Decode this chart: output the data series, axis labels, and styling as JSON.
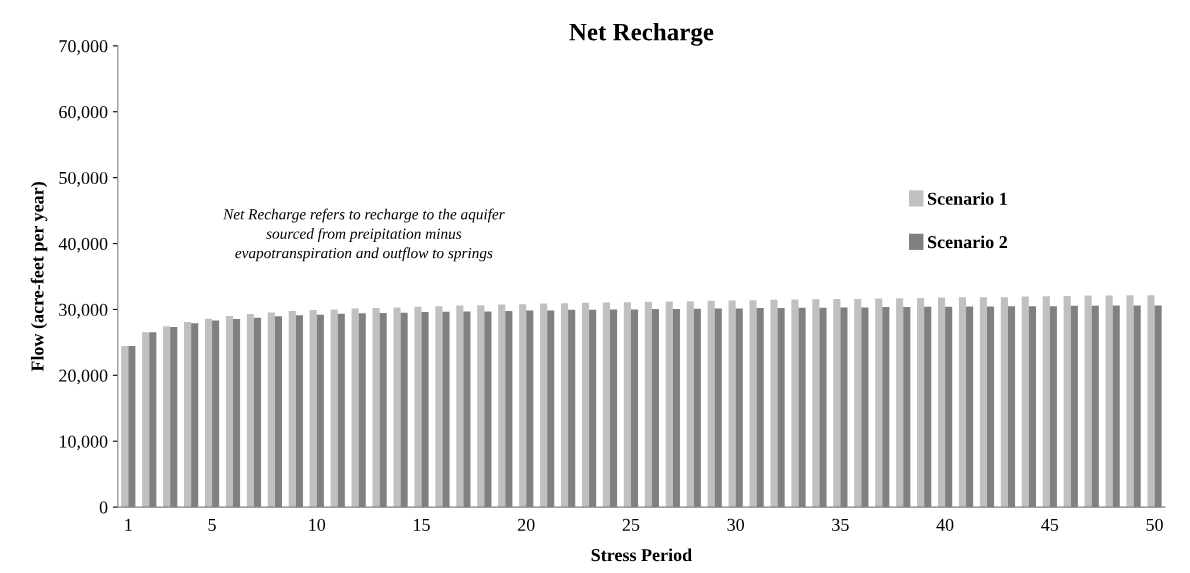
{
  "chart_data": {
    "type": "bar",
    "title": "Net Recharge",
    "xlabel": "Stress Period",
    "ylabel": "Flow (acre-feet per year)",
    "categories": [
      "1",
      null,
      null,
      null,
      "5",
      null,
      null,
      null,
      null,
      "10",
      null,
      null,
      null,
      null,
      "15",
      null,
      null,
      null,
      null,
      "20",
      null,
      null,
      null,
      null,
      "25",
      null,
      null,
      null,
      null,
      "30",
      null,
      null,
      null,
      null,
      "35",
      null,
      null,
      null,
      null,
      "40",
      null,
      null,
      null,
      null,
      "45",
      null,
      null,
      null,
      null,
      "50"
    ],
    "series": [
      {
        "name": "Scenario 1",
        "color": "#c0c0c0",
        "values": [
          24450,
          26550,
          27450,
          28100,
          28600,
          29000,
          29300,
          29550,
          29750,
          29900,
          30000,
          30150,
          30200,
          30300,
          30400,
          30500,
          30600,
          30650,
          30750,
          30800,
          30900,
          30950,
          31000,
          31050,
          31100,
          31150,
          31200,
          31250,
          31300,
          31350,
          31400,
          31450,
          31500,
          31550,
          31600,
          31600,
          31650,
          31700,
          31750,
          31800,
          31850,
          31850,
          31850,
          31950,
          32000,
          32050,
          32100,
          32100,
          32150,
          32150
        ]
      },
      {
        "name": "Scenario 2",
        "color": "#808080",
        "values": [
          24450,
          26550,
          27350,
          27900,
          28300,
          28550,
          28750,
          28950,
          29100,
          29200,
          29350,
          29400,
          29450,
          29500,
          29600,
          29650,
          29700,
          29700,
          29750,
          29850,
          29850,
          29950,
          29950,
          30000,
          30000,
          30050,
          30050,
          30100,
          30150,
          30150,
          30200,
          30200,
          30250,
          30250,
          30300,
          30300,
          30350,
          30350,
          30400,
          30400,
          30450,
          30450,
          30500,
          30500,
          30500,
          30550,
          30550,
          30600,
          30600,
          30600
        ]
      }
    ],
    "ylim": [
      0,
      70000
    ],
    "yticks": [
      {
        "value": 0,
        "label": "0"
      },
      {
        "value": 10000,
        "label": "10,000"
      },
      {
        "value": 20000,
        "label": "20,000"
      },
      {
        "value": 30000,
        "label": "30,000"
      },
      {
        "value": 40000,
        "label": "40,000"
      },
      {
        "value": 50000,
        "label": "50,000"
      },
      {
        "value": 60000,
        "label": "60,000"
      },
      {
        "value": 70000,
        "label": "70,000"
      }
    ],
    "grid": false,
    "legend": "right",
    "annotations": [
      "Net Recharge refers to recharge to the aquifer\nsourced from preipitation minus\nevapotranspiration and outflow to springs"
    ]
  }
}
